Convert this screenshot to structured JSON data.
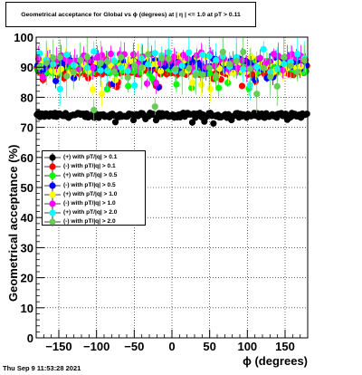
{
  "chart_data": {
    "type": "scatter",
    "title": "Geometrical acceptance for Global vs ϕ (degrees) at | η | <= 1.0 at pT > 0.11",
    "xlabel": "ϕ (degrees)",
    "ylabel": "Geometrical acceptance (%)",
    "xlim": [
      -180,
      180
    ],
    "ylim": [
      0,
      100
    ],
    "x_ticks": [
      -150,
      -100,
      -50,
      0,
      50,
      100,
      150
    ],
    "x_tick_labels": [
      "−150",
      "−100",
      "−50",
      "0",
      "50",
      "100",
      "150"
    ],
    "y_ticks": [
      0,
      10,
      20,
      30,
      40,
      50,
      60,
      70,
      80,
      90,
      100
    ],
    "y_tick_labels": [
      "0",
      "10",
      "20",
      "30",
      "40",
      "50",
      "60",
      "70",
      "80",
      "90",
      "100"
    ],
    "grid": true,
    "legend_position": "left-middle",
    "series": [
      {
        "name": "(+) with pT/|q| > 0.1",
        "color": "#000000",
        "x_step": 2,
        "mean": 74,
        "spread": 0.8,
        "error": 0.5
      },
      {
        "name": "(-) with pT/|q| > 0.1",
        "color": "#ff0000",
        "x_step": 2,
        "mean": 89,
        "spread": 1.6,
        "error": 1.0
      },
      {
        "name": "(+) with pT/|q| > 0.5",
        "color": "#00ff00",
        "x_step": 4,
        "mean": 90,
        "spread": 2.2,
        "error": 2.0
      },
      {
        "name": "(-) with pT/|q| > 0.5",
        "color": "#0000ff",
        "x_step": 4,
        "mean": 91,
        "spread": 2.2,
        "error": 2.0
      },
      {
        "name": "(+) with pT/|q| > 1.0",
        "color": "#ffff00",
        "x_step": 6,
        "mean": 91,
        "spread": 3.0,
        "error": 3.0
      },
      {
        "name": "(-) with pT/|q| > 1.0",
        "color": "#ff00ff",
        "x_step": 6,
        "mean": 92,
        "spread": 3.0,
        "error": 3.0
      },
      {
        "name": "(+) with pT/|q| > 2.0",
        "color": "#00ffff",
        "x_step": 9,
        "mean": 92,
        "spread": 4.0,
        "error": 5.0
      },
      {
        "name": "(-) with pT/|q| > 2.0",
        "color": "#66cc55",
        "x_step": 9,
        "mean": 91,
        "spread": 4.5,
        "error": 5.0
      }
    ]
  },
  "timestamp": "Thu Sep  9 11:53:28 2021"
}
